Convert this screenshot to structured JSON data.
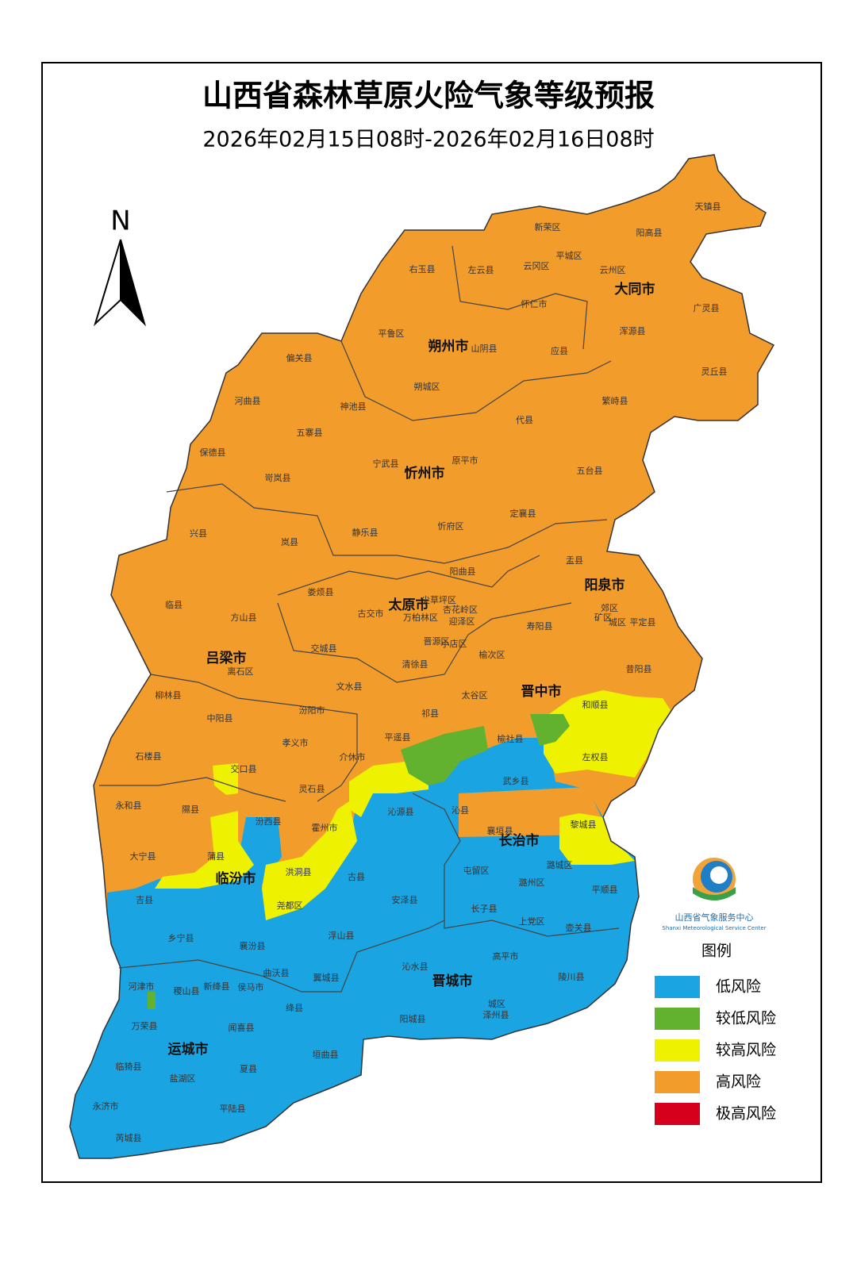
{
  "header": {
    "title": "山西省森林草原火险气象等级预报",
    "subtitle": "2026年02月15日08时-2026年02月16日08时"
  },
  "north": "N",
  "cities": [
    "大同市",
    "朔州市",
    "忻州市",
    "阳泉市",
    "太原市",
    "吕梁市",
    "晋中市",
    "长治市",
    "临汾市",
    "晋城市",
    "运城市"
  ],
  "counties": [
    "天镇县",
    "新荣区",
    "阳高县",
    "右玉县",
    "左云县",
    "平城区",
    "云冈区",
    "云州区",
    "怀仁市",
    "广灵县",
    "浑源县",
    "平鲁区",
    "山阴县",
    "应县",
    "灵丘县",
    "偏关县",
    "朔城区",
    "河曲县",
    "神池县",
    "繁峙县",
    "代县",
    "五寨县",
    "保德县",
    "宁武县",
    "原平市",
    "五台县",
    "岢岚县",
    "定襄县",
    "静乐县",
    "忻府区",
    "兴县",
    "岚县",
    "盂县",
    "阳曲县",
    "娄烦县",
    "临县",
    "尖草坪区",
    "古交市",
    "万柏林区",
    "杏花岭区",
    "迎泽区",
    "郊区",
    "矿区",
    "城区",
    "平定县",
    "方山县",
    "寿阳县",
    "晋源区",
    "小店区",
    "交城县",
    "榆次区",
    "昔阳县",
    "离石区",
    "清徐县",
    "文水县",
    "柳林县",
    "太谷区",
    "和顺县",
    "中阳县",
    "汾阳市",
    "祁县",
    "孝义市",
    "平遥县",
    "榆社县",
    "介休市",
    "左权县",
    "石楼县",
    "交口县",
    "武乡县",
    "灵石县",
    "永和县",
    "隰县",
    "沁源县",
    "沁县",
    "汾西县",
    "黎城县",
    "霍州市",
    "襄垣县",
    "大宁县",
    "蒲县",
    "洪洞县",
    "古县",
    "潞城区",
    "屯留区",
    "潞州区",
    "平顺县",
    "吉县",
    "尧都区",
    "安泽县",
    "长子县",
    "上党区",
    "壶关县",
    "乡宁县",
    "襄汾县",
    "浮山县",
    "高平市",
    "曲沃县",
    "翼城县",
    "沁水县",
    "陵川县",
    "河津市",
    "稷山县",
    "新绛县",
    "侯马市",
    "绛县",
    "阳城县",
    "城区",
    "泽州县",
    "万荣县",
    "闻喜县",
    "垣曲县",
    "临猗县",
    "盐湖区",
    "夏县",
    "永济市",
    "平陆县",
    "芮城县"
  ],
  "legend": {
    "title": "图例",
    "items": [
      {
        "label": "低风险",
        "color": "#1ba4e2"
      },
      {
        "label": "较低风险",
        "color": "#62b22f"
      },
      {
        "label": "较高风险",
        "color": "#eef200"
      },
      {
        "label": "高风险",
        "color": "#f29c2c"
      },
      {
        "label": "极高风险",
        "color": "#d6001c"
      }
    ]
  },
  "logo": {
    "name": "山西省气象服务中心",
    "english": "Shanxi Meteorological Service Center"
  }
}
